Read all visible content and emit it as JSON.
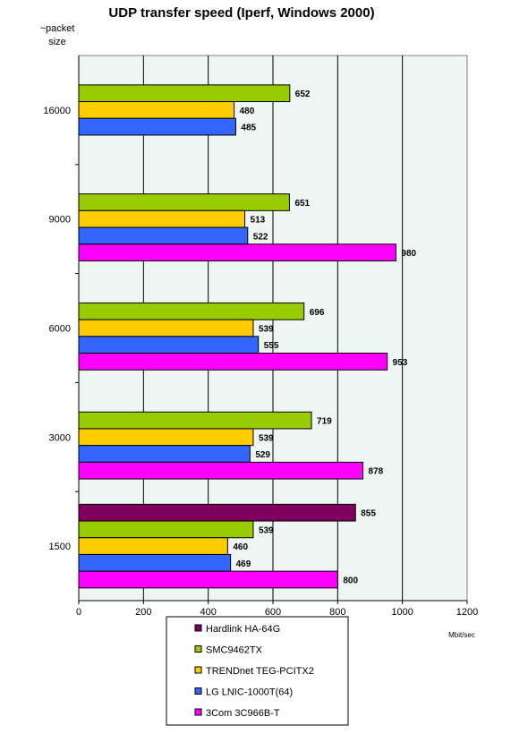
{
  "chart_data": {
    "type": "bar",
    "orientation": "horizontal",
    "title": "UDP transfer speed (Iperf, Windows 2000)",
    "ylabel_line1": "~packet",
    "ylabel_line2": "size",
    "xlabel": "Mbit/sec",
    "xlim": [
      0,
      1200
    ],
    "xticks": [
      "0",
      "200",
      "400",
      "600",
      "800",
      "1000",
      "1200"
    ],
    "grid": true,
    "legend_position": "bottom",
    "categories": [
      "16000",
      "9000",
      "6000",
      "3000",
      "1500"
    ],
    "series": [
      {
        "name": "Hardlink HA-64G",
        "color": "#800060",
        "values": [
          null,
          null,
          null,
          null,
          855
        ]
      },
      {
        "name": "SMC9462TX",
        "color": "#99cc00",
        "values": [
          652,
          651,
          696,
          719,
          539
        ]
      },
      {
        "name": "TRENDnet TEG-PCITX2",
        "color": "#ffcc00",
        "values": [
          480,
          513,
          539,
          539,
          460
        ]
      },
      {
        "name": "LG LNIC-1000T(64)",
        "color": "#3366ff",
        "values": [
          485,
          522,
          555,
          529,
          469
        ]
      },
      {
        "name": "3Com 3C966B-T",
        "color": "#ff00ff",
        "values": [
          null,
          980,
          953,
          878,
          800
        ]
      }
    ],
    "plot_background": "#eef5f2"
  }
}
